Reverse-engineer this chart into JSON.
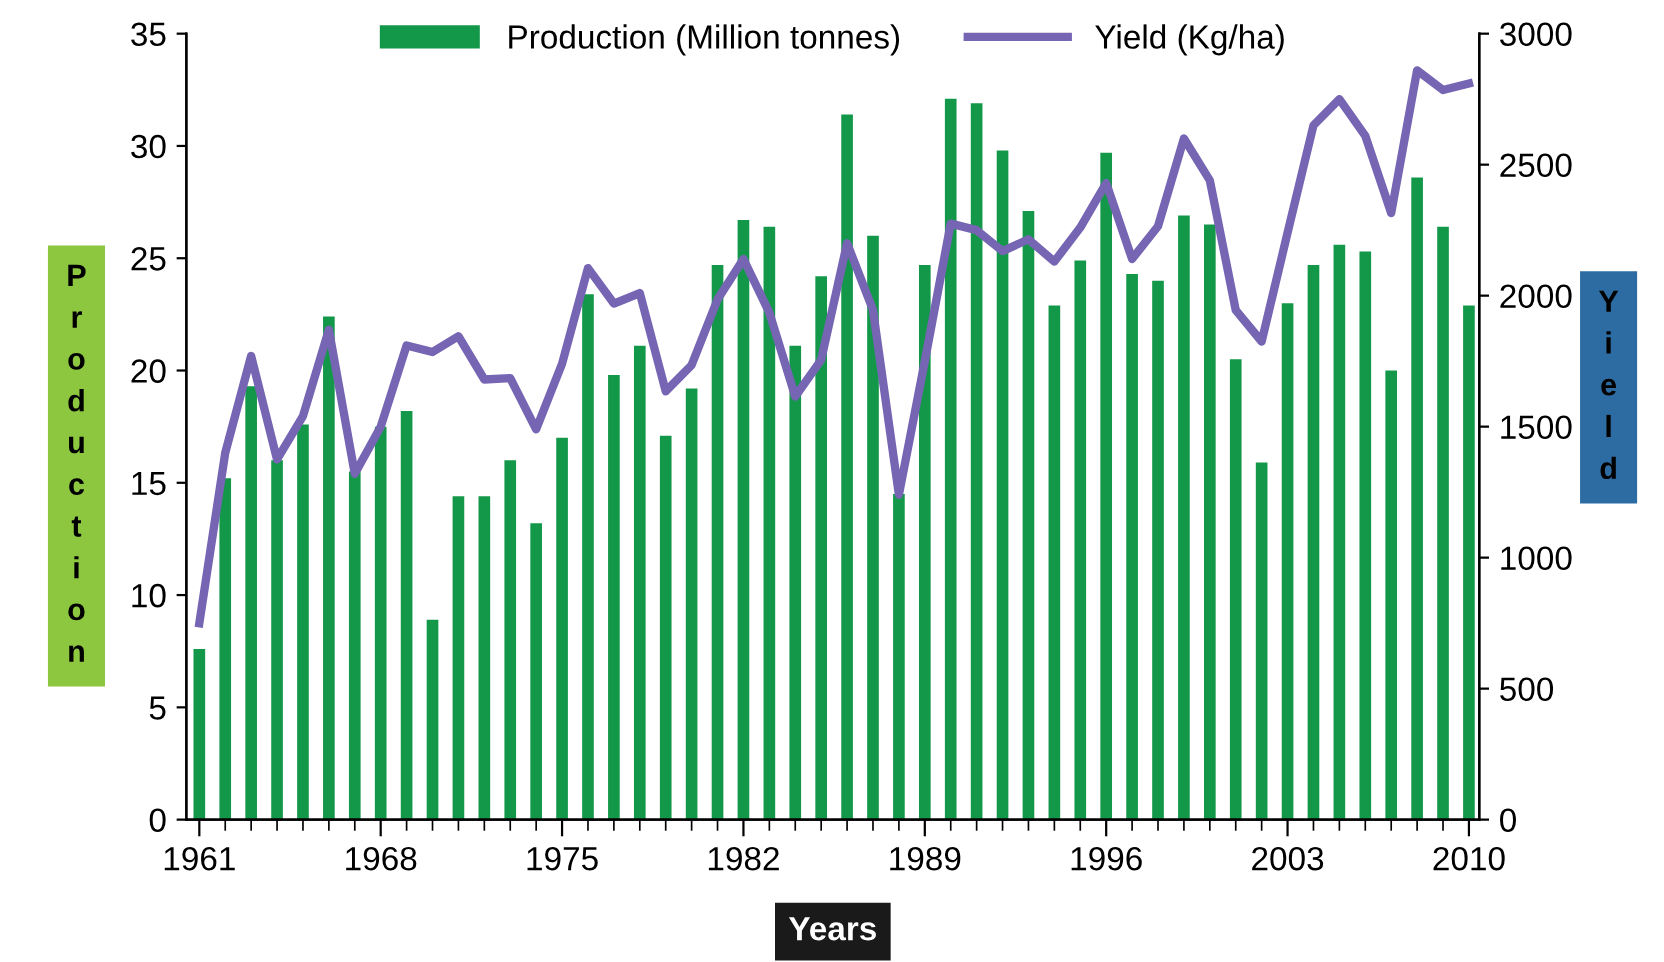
{
  "chart_data": {
    "type": "bar",
    "x": [
      1961,
      1962,
      1963,
      1964,
      1965,
      1966,
      1967,
      1968,
      1969,
      1970,
      1971,
      1972,
      1973,
      1974,
      1975,
      1976,
      1977,
      1978,
      1979,
      1980,
      1981,
      1982,
      1983,
      1984,
      1985,
      1986,
      1987,
      1988,
      1989,
      1990,
      1991,
      1992,
      1993,
      1994,
      1995,
      1996,
      1997,
      1998,
      1999,
      2000,
      2001,
      2002,
      2003,
      2004,
      2005,
      2006,
      2007,
      2008,
      2009,
      2010
    ],
    "series": [
      {
        "name": "Production (Million tonnes)",
        "color": "#13984a",
        "values": [
          7.6,
          15.2,
          19.3,
          16.0,
          17.6,
          22.4,
          15.5,
          17.5,
          18.2,
          8.9,
          14.4,
          14.4,
          16.0,
          13.2,
          17.0,
          23.4,
          19.8,
          21.1,
          17.1,
          19.2,
          24.7,
          26.7,
          26.4,
          21.1,
          24.2,
          31.4,
          26.0,
          14.5,
          24.7,
          32.1,
          31.9,
          29.8,
          27.1,
          22.9,
          24.9,
          29.7,
          24.3,
          24.0,
          26.9,
          26.5,
          20.5,
          15.9,
          23.0,
          24.7,
          25.6,
          25.3,
          20.0,
          28.6,
          26.4,
          22.9
        ]
      },
      {
        "name": "Yield (Kg/ha)",
        "type": "line",
        "axis": "y2",
        "color": "#7565b3",
        "values": [
          750,
          1400,
          1770,
          1375,
          1540,
          1870,
          1320,
          1500,
          1810,
          1785,
          1845,
          1680,
          1685,
          1490,
          1740,
          2105,
          1970,
          2010,
          1635,
          1735,
          1985,
          2140,
          1935,
          1615,
          1755,
          2200,
          1945,
          1240,
          1750,
          2275,
          2250,
          2170,
          2215,
          2130,
          2260,
          2430,
          2140,
          2265,
          2600,
          2440,
          1945,
          1825,
          2240,
          2650,
          2750,
          2610,
          2315,
          2860,
          2785,
          2810
        ]
      }
    ],
    "xlim": [
      1960.5,
      2010.4
    ],
    "xticks": [
      1961,
      1968,
      1975,
      1982,
      1989,
      1996,
      2003,
      2010
    ],
    "ylim": [
      0,
      35
    ],
    "yticks": [
      0,
      5,
      10,
      15,
      20,
      25,
      30,
      35
    ],
    "y2lim": [
      0,
      3000
    ],
    "y2ticks": [
      0,
      500,
      1000,
      1500,
      2000,
      2500,
      3000
    ],
    "xlabel": "Years",
    "ylabel": "Production",
    "y2label": "Yield",
    "legend": "top",
    "grid": false,
    "line_style": "solid",
    "marker": "none"
  }
}
